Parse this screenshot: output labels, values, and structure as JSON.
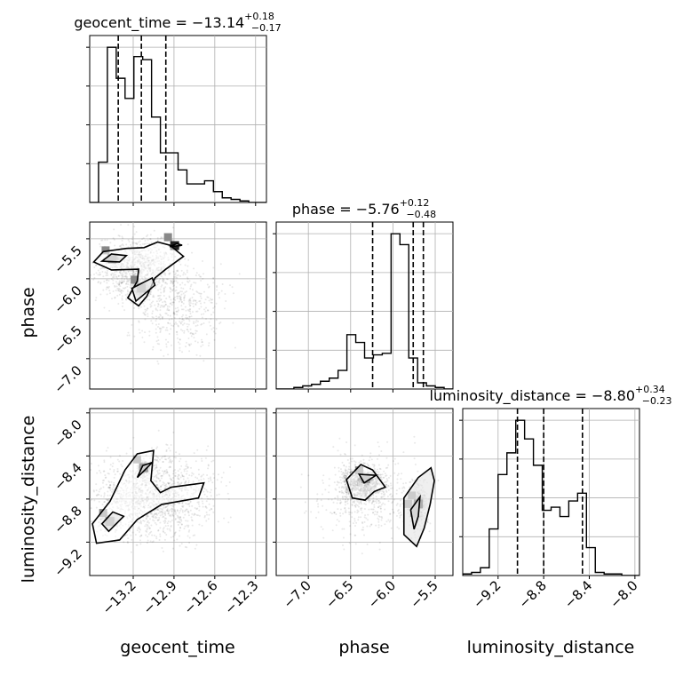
{
  "chart_data": {
    "type": "corner",
    "parameters": [
      "geocent_time",
      "phase",
      "luminosity_distance"
    ],
    "titles": [
      {
        "param": "geocent_time",
        "text": "geocent_time = −13.14",
        "plus": "+0.18",
        "minus": "−0.17",
        "median": -13.14,
        "q16": -13.31,
        "q84": -12.96
      },
      {
        "param": "phase",
        "text": "phase = −5.76",
        "plus": "+0.12",
        "minus": "−0.48",
        "median": -5.76,
        "q16": -6.24,
        "q84": -5.64
      },
      {
        "param": "luminosity_distance",
        "text": "luminosity_distance = −8.80",
        "plus": "+0.34",
        "minus": "−0.23",
        "median": -8.8,
        "q16": -9.03,
        "q84": -8.46
      }
    ],
    "axes": {
      "geocent_time": {
        "range": [
          -13.52,
          -12.22
        ],
        "ticks": [
          -13.2,
          -12.9,
          -12.6,
          -12.3
        ],
        "tick_labels": [
          "−13.2",
          "−12.9",
          "−12.6",
          "−12.3"
        ]
      },
      "phase": {
        "range": [
          -7.38,
          -5.29
        ],
        "ticks": [
          -7.0,
          -6.5,
          -6.0,
          -5.5
        ],
        "tick_labels": [
          "−7.0",
          "−6.5",
          "−6.0",
          "−5.5"
        ]
      },
      "luminosity_distance": {
        "range": [
          -9.51,
          -7.96
        ],
        "ticks": [
          -9.2,
          -8.8,
          -8.4,
          -8.0
        ],
        "tick_labels": [
          "−9.2",
          "−8.8",
          "−8.4",
          "−8.0"
        ]
      }
    },
    "histograms": {
      "geocent_time": {
        "edges": [
          -13.52,
          -13.455,
          -13.39,
          -13.325,
          -13.26,
          -13.195,
          -13.13,
          -13.065,
          -13.0,
          -12.935,
          -12.87,
          -12.805,
          -12.74,
          -12.675,
          -12.61,
          -12.545,
          -12.48,
          -12.415,
          -12.35,
          -12.285,
          -12.22
        ],
        "counts": [
          0.0,
          0.26,
          1.0,
          0.8,
          0.67,
          0.94,
          0.92,
          0.55,
          0.32,
          0.32,
          0.21,
          0.12,
          0.12,
          0.14,
          0.07,
          0.03,
          0.02,
          0.01,
          0.0,
          0.0
        ]
      },
      "phase": {
        "edges": [
          -7.38,
          -7.2755,
          -7.171,
          -7.0665,
          -6.962,
          -6.8575,
          -6.753,
          -6.6485,
          -6.544,
          -6.4395,
          -6.335,
          -6.2305,
          -6.126,
          -6.0215,
          -5.917,
          -5.8125,
          -5.708,
          -5.6035,
          -5.499,
          -5.3945,
          -5.29
        ],
        "counts": [
          0.0,
          0.0,
          0.01,
          0.02,
          0.03,
          0.05,
          0.07,
          0.12,
          0.35,
          0.3,
          0.2,
          0.22,
          0.23,
          1.0,
          0.93,
          0.2,
          0.04,
          0.02,
          0.01,
          0.0
        ]
      },
      "luminosity_distance": {
        "edges": [
          -9.51,
          -9.4325,
          -9.355,
          -9.2775,
          -9.2,
          -9.1225,
          -9.045,
          -8.9675,
          -8.89,
          -8.8125,
          -8.735,
          -8.6575,
          -8.58,
          -8.5025,
          -8.425,
          -8.3475,
          -8.27,
          -8.1925,
          -8.115,
          -8.0375,
          -7.96
        ],
        "counts": [
          0.01,
          0.02,
          0.05,
          0.3,
          0.65,
          0.79,
          1.0,
          0.88,
          0.71,
          0.42,
          0.44,
          0.38,
          0.48,
          0.53,
          0.18,
          0.02,
          0.01,
          0.01,
          0.0,
          0.0
        ]
      }
    },
    "contours": {
      "phase_vs_geocent_time": [
        [
          [
            -13.49,
            -5.79
          ],
          [
            -13.42,
            -5.66
          ],
          [
            -13.25,
            -5.62
          ],
          [
            -13.12,
            -5.61
          ],
          [
            -13.02,
            -5.54
          ],
          [
            -12.93,
            -5.58
          ],
          [
            -12.83,
            -5.72
          ],
          [
            -12.96,
            -5.88
          ],
          [
            -13.04,
            -5.99
          ],
          [
            -13.1,
            -6.22
          ],
          [
            -13.16,
            -6.34
          ],
          [
            -13.24,
            -6.24
          ],
          [
            -13.17,
            -6.03
          ],
          [
            -13.16,
            -5.88
          ],
          [
            -13.36,
            -5.89
          ],
          [
            -13.49,
            -5.79
          ]
        ],
        [
          [
            -13.43,
            -5.78
          ],
          [
            -13.36,
            -5.69
          ],
          [
            -13.25,
            -5.71
          ],
          [
            -13.3,
            -5.79
          ],
          [
            -13.43,
            -5.78
          ]
        ],
        [
          [
            -13.21,
            -6.12
          ],
          [
            -13.18,
            -6.28
          ],
          [
            -13.04,
            -6.08
          ],
          [
            -13.06,
            -5.99
          ],
          [
            -13.21,
            -6.12
          ]
        ],
        [
          [
            -12.93,
            -5.6
          ],
          [
            -12.88,
            -5.56
          ],
          [
            -12.84,
            -5.58
          ],
          [
            -12.93,
            -5.6
          ]
        ]
      ],
      "lumdist_vs_geocent_time": [
        [
          [
            -13.5,
            -9.03
          ],
          [
            -13.37,
            -8.82
          ],
          [
            -13.26,
            -8.53
          ],
          [
            -13.17,
            -8.38
          ],
          [
            -13.05,
            -8.35
          ],
          [
            -13.07,
            -8.63
          ],
          [
            -13.0,
            -8.74
          ],
          [
            -12.92,
            -8.69
          ],
          [
            -12.68,
            -8.65
          ],
          [
            -12.72,
            -8.79
          ],
          [
            -12.99,
            -8.85
          ],
          [
            -13.17,
            -8.99
          ],
          [
            -13.3,
            -9.18
          ],
          [
            -13.47,
            -9.21
          ],
          [
            -13.5,
            -9.03
          ]
        ],
        [
          [
            -13.43,
            -9.03
          ],
          [
            -13.35,
            -8.92
          ],
          [
            -13.27,
            -8.96
          ],
          [
            -13.38,
            -9.1
          ],
          [
            -13.43,
            -9.03
          ]
        ],
        [
          [
            -13.13,
            -8.49
          ],
          [
            -13.06,
            -8.46
          ],
          [
            -13.17,
            -8.6
          ],
          [
            -13.13,
            -8.49
          ]
        ]
      ],
      "lumdist_vs_phase": [
        [
          [
            -6.55,
            -8.62
          ],
          [
            -6.38,
            -8.48
          ],
          [
            -6.24,
            -8.53
          ],
          [
            -6.09,
            -8.69
          ],
          [
            -6.22,
            -8.73
          ],
          [
            -6.33,
            -8.81
          ],
          [
            -6.48,
            -8.79
          ],
          [
            -6.55,
            -8.62
          ]
        ],
        [
          [
            -6.34,
            -8.65
          ],
          [
            -6.2,
            -8.58
          ],
          [
            -6.4,
            -8.57
          ],
          [
            -6.34,
            -8.65
          ]
        ],
        [
          [
            -5.87,
            -8.79
          ],
          [
            -5.7,
            -8.6
          ],
          [
            -5.55,
            -8.51
          ],
          [
            -5.51,
            -8.63
          ],
          [
            -5.56,
            -8.85
          ],
          [
            -5.63,
            -9.07
          ],
          [
            -5.72,
            -9.24
          ],
          [
            -5.87,
            -9.13
          ],
          [
            -5.87,
            -8.79
          ]
        ],
        [
          [
            -5.79,
            -8.9
          ],
          [
            -5.68,
            -8.78
          ],
          [
            -5.7,
            -8.96
          ],
          [
            -5.75,
            -9.08
          ],
          [
            -5.79,
            -8.9
          ]
        ]
      ]
    },
    "grid": true
  }
}
